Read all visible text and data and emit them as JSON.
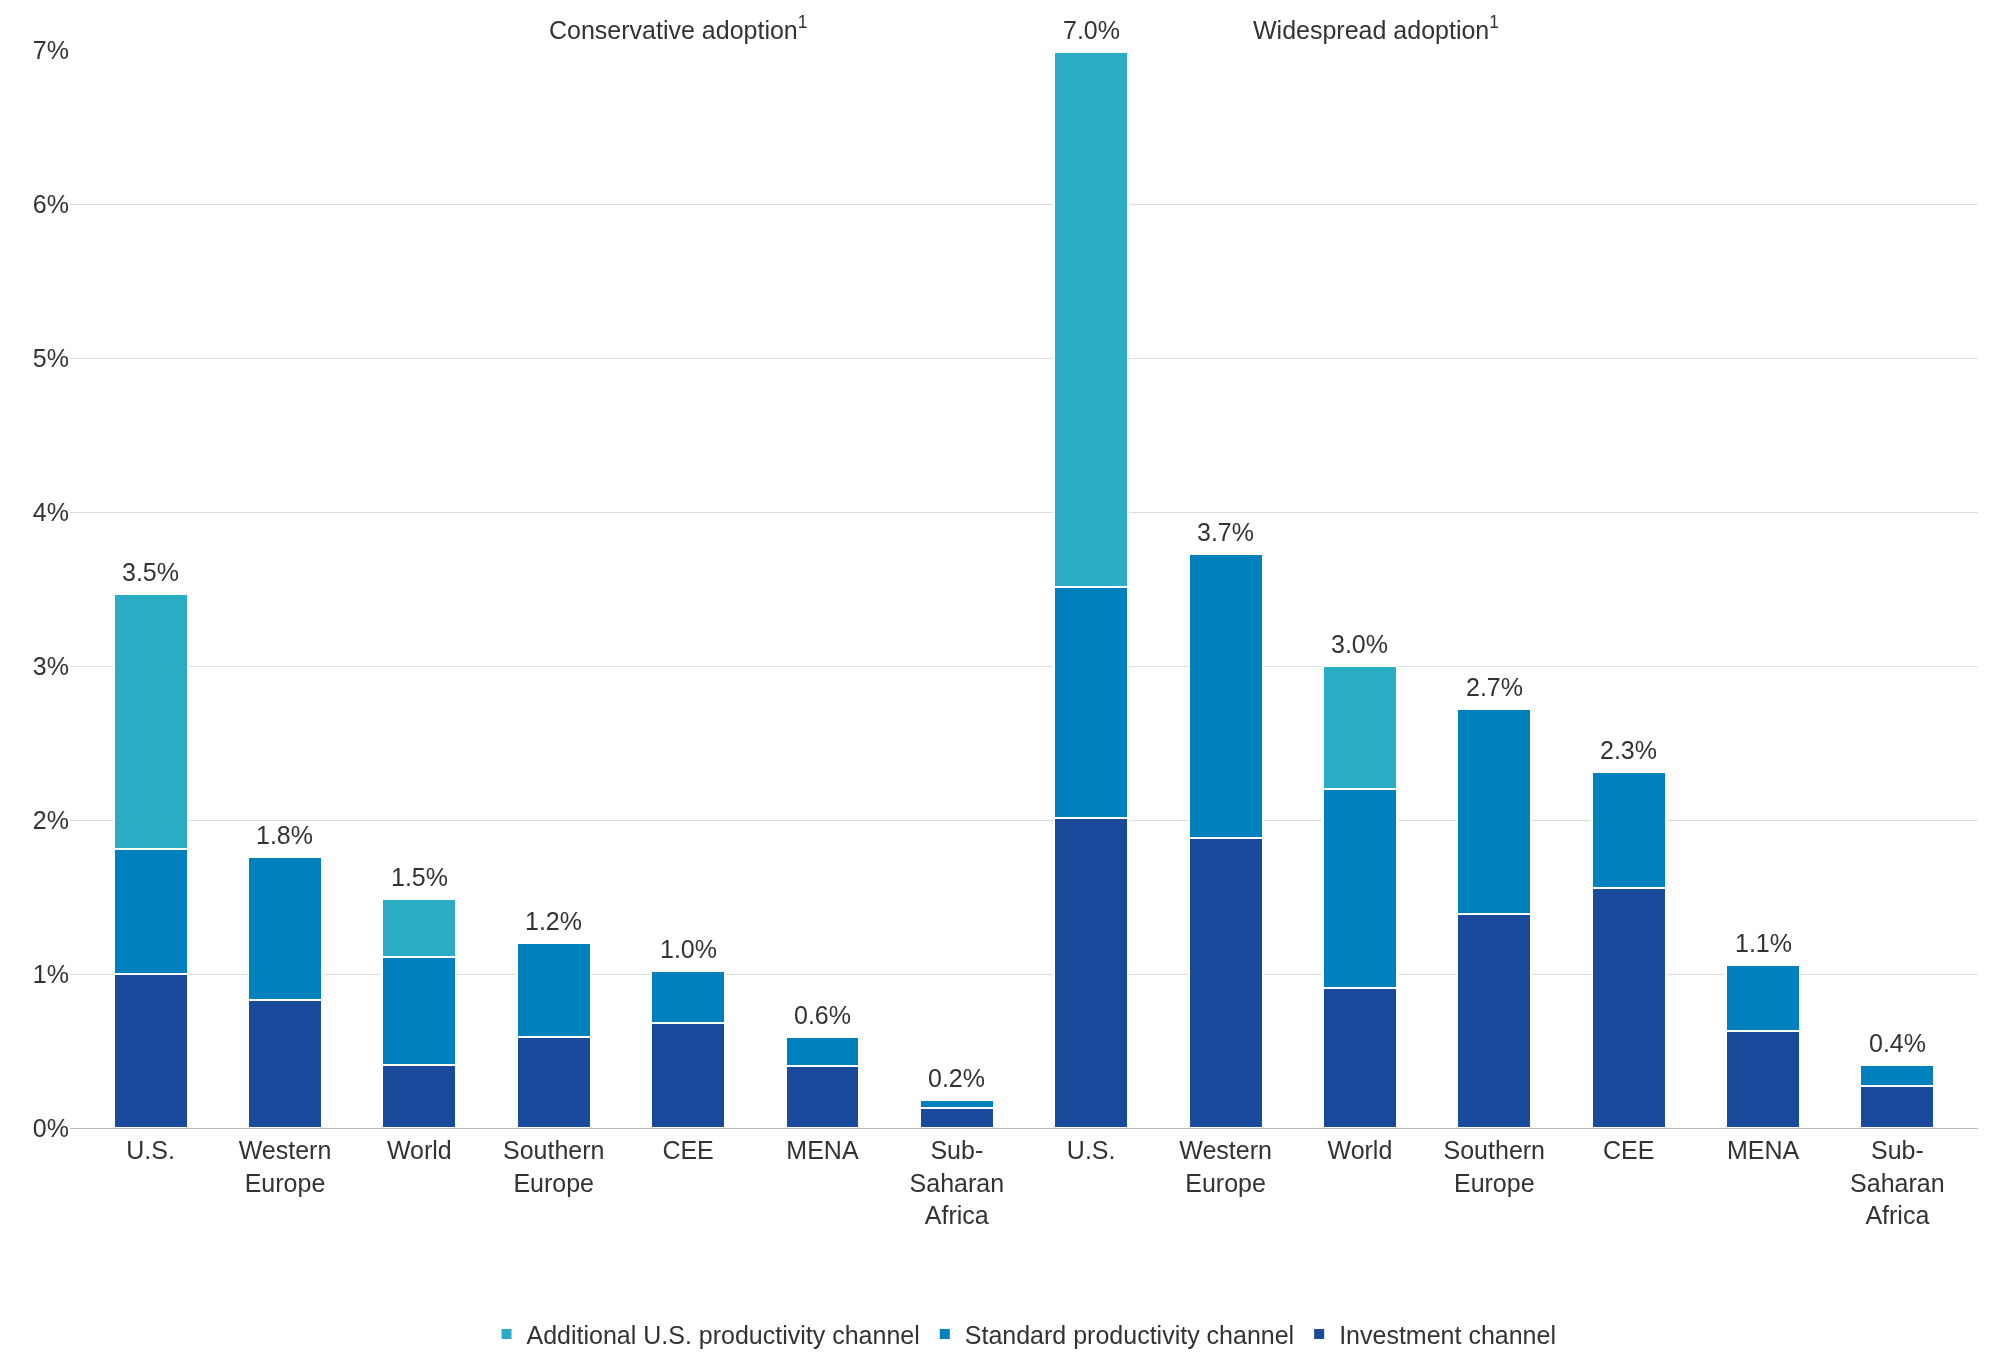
{
  "chart_data": {
    "type": "bar",
    "stacked": true,
    "categories": [
      "U.S.",
      "Western\nEurope",
      "World",
      "Southern\nEurope",
      "CEE",
      "MENA",
      "Sub-\nSaharan\nAfrica",
      "U.S.",
      "Western\nEurope",
      "World",
      "Southern\nEurope",
      "CEE",
      "MENA",
      "Sub-\nSaharan\nAfrica"
    ],
    "series": [
      {
        "name": "Investment channel",
        "color": "#1a4a9c",
        "values": [
          1.0,
          0.83,
          0.41,
          0.59,
          0.68,
          0.4,
          0.13,
          2.01,
          1.88,
          0.91,
          1.39,
          1.56,
          0.63,
          0.27
        ]
      },
      {
        "name": "Standard productivity channel",
        "color": "#0080bc",
        "values": [
          0.81,
          0.93,
          0.7,
          0.61,
          0.34,
          0.19,
          0.05,
          1.5,
          1.85,
          1.29,
          1.33,
          0.75,
          0.43,
          0.14
        ]
      },
      {
        "name": "Additional U.S. productivity channel",
        "color": "#2aacc5",
        "values": [
          1.66,
          null,
          0.38,
          null,
          null,
          null,
          null,
          3.48,
          null,
          0.8,
          null,
          null,
          null,
          null
        ]
      }
    ],
    "totals": [
      "3.5%",
      "1.8%",
      "1.5%",
      "1.2%",
      "1.0%",
      "0.6%",
      "0.2%",
      "7.0%",
      "3.7%",
      "3.0%",
      "2.7%",
      "2.3%",
      "1.1%",
      "0.4%"
    ],
    "ylim": [
      0,
      7
    ],
    "yticks": [
      {
        "value": 0,
        "label": "0%"
      },
      {
        "value": 1,
        "label": "1%"
      },
      {
        "value": 2,
        "label": "2%"
      },
      {
        "value": 3,
        "label": "3%"
      },
      {
        "value": 4,
        "label": "4%"
      },
      {
        "value": 5,
        "label": "5%"
      },
      {
        "value": 6,
        "label": "6%"
      },
      {
        "value": 7,
        "label": "7%"
      }
    ],
    "grid": "y",
    "legend": "bottom",
    "annotations": [
      "Conservative adoption$^{1}$",
      "Widespread adoption$^{1}$"
    ]
  }
}
